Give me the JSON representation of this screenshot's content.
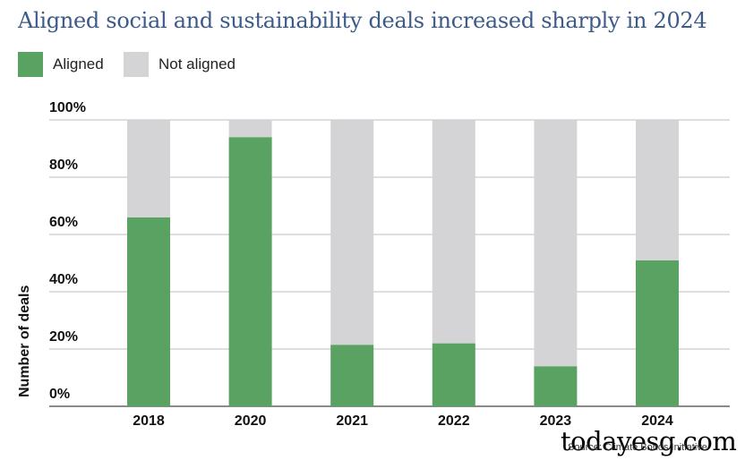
{
  "title": "Aligned social and sustainability deals increased sharply in 2024",
  "legend": [
    {
      "label": "Aligned",
      "color": "#5aa261"
    },
    {
      "label": "Not aligned",
      "color": "#d4d4d6"
    }
  ],
  "source": "Source: Climate Bonds Initiative",
  "watermark": "todayesg.com",
  "chart_data": {
    "type": "bar",
    "stacked": true,
    "title": "Aligned social and sustainability deals increased sharply in 2024",
    "xlabel": "",
    "ylabel": "Number of deals",
    "ylim": [
      0,
      100
    ],
    "yticks": [
      "0%",
      "20%",
      "40%",
      "60%",
      "80%",
      "100%"
    ],
    "categories": [
      "2018",
      "2020",
      "2021",
      "2022",
      "2023",
      "2024"
    ],
    "series": [
      {
        "name": "Aligned",
        "color": "#5aa261",
        "values": [
          66,
          94,
          21.5,
          22,
          14,
          51
        ]
      },
      {
        "name": "Not aligned",
        "color": "#d4d4d6",
        "values": [
          34,
          6,
          78.5,
          78,
          86,
          49
        ]
      }
    ],
    "grid": true,
    "legend_position": "top-left"
  }
}
